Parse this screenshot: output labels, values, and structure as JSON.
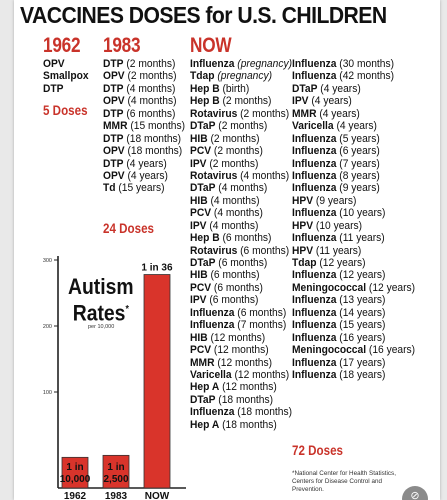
{
  "title": "VACCINES DOSES for U.S. CHILDREN",
  "columns": [
    {
      "year": "1962",
      "entries": [
        {
          "name": "OPV",
          "age": ""
        },
        {
          "name": "Smallpox",
          "age": ""
        },
        {
          "name": "DTP",
          "age": ""
        }
      ],
      "total": "5 Doses"
    },
    {
      "year": "1983",
      "entries": [
        {
          "name": "DTP",
          "age": "(2 months)"
        },
        {
          "name": "OPV",
          "age": "(2 months)"
        },
        {
          "name": "DTP",
          "age": "(4 months)"
        },
        {
          "name": "OPV",
          "age": "(4 months)"
        },
        {
          "name": "DTP",
          "age": "(6 months)"
        },
        {
          "name": "MMR",
          "age": "(15 months)"
        },
        {
          "name": "DTP",
          "age": "(18 months)"
        },
        {
          "name": "OPV",
          "age": "(18 months)"
        },
        {
          "name": "DTP",
          "age": "(4 years)"
        },
        {
          "name": "OPV",
          "age": "(4 years)"
        },
        {
          "name": "Td",
          "age": "(15 years)"
        }
      ],
      "total": "24 Doses"
    },
    {
      "year": "NOW",
      "entries": [
        {
          "name": "Influenza",
          "age": "(pregnancy)",
          "italic": true
        },
        {
          "name": "Tdap",
          "age": "(pregnancy)",
          "italic": true
        },
        {
          "name": "Hep B",
          "age": "(birth)"
        },
        {
          "name": "Hep B",
          "age": "(2 months)"
        },
        {
          "name": "Rotavirus",
          "age": "(2 months)"
        },
        {
          "name": "DTaP",
          "age": "(2 months)"
        },
        {
          "name": "HIB",
          "age": "(2 months)"
        },
        {
          "name": "PCV",
          "age": "(2 months)"
        },
        {
          "name": "IPV",
          "age": "(2 months)"
        },
        {
          "name": "Rotavirus",
          "age": "(4 months)"
        },
        {
          "name": "DTaP",
          "age": "(4 months)"
        },
        {
          "name": "HIB",
          "age": "(4 months)"
        },
        {
          "name": "PCV",
          "age": "(4 months)"
        },
        {
          "name": "IPV",
          "age": "(4 months)"
        },
        {
          "name": "Hep B",
          "age": "(6 months)"
        },
        {
          "name": "Rotavirus",
          "age": "(6 months)"
        },
        {
          "name": "DTaP",
          "age": "(6 months)"
        },
        {
          "name": "HIB",
          "age": "(6 months)"
        },
        {
          "name": "PCV",
          "age": "(6 months)"
        },
        {
          "name": "IPV",
          "age": "(6 months)"
        },
        {
          "name": "Influenza",
          "age": "(6 months)"
        },
        {
          "name": "Influenza",
          "age": "(7 months)"
        },
        {
          "name": "HIB",
          "age": "(12 months)"
        },
        {
          "name": "PCV",
          "age": "(12 months)"
        },
        {
          "name": "MMR",
          "age": "(12 months)"
        },
        {
          "name": "Varicella",
          "age": "(12 months)"
        },
        {
          "name": "Hep A",
          "age": "(12 months)"
        },
        {
          "name": "DTaP",
          "age": "(18 months)"
        },
        {
          "name": "Influenza",
          "age": "(18 months)"
        },
        {
          "name": "Hep A",
          "age": "(18 months)"
        }
      ],
      "total": ""
    },
    {
      "year": "",
      "entries": [
        {
          "name": "Influenza",
          "age": "(30 months)"
        },
        {
          "name": "Influenza",
          "age": "(42 months)"
        },
        {
          "name": "DTaP",
          "age": "(4 years)"
        },
        {
          "name": "IPV",
          "age": "(4 years)"
        },
        {
          "name": "MMR",
          "age": "(4 years)"
        },
        {
          "name": "Varicella",
          "age": "(4 years)"
        },
        {
          "name": "Influenza",
          "age": "(5 years)"
        },
        {
          "name": "Influenza",
          "age": "(6 years)"
        },
        {
          "name": "Influenza",
          "age": "(7 years)"
        },
        {
          "name": "Influenza",
          "age": "(8 years)"
        },
        {
          "name": "Influenza",
          "age": "(9 years)"
        },
        {
          "name": "HPV",
          "age": "(9 years)"
        },
        {
          "name": "Influenza",
          "age": "(10 years)"
        },
        {
          "name": "HPV",
          "age": "(10 years)"
        },
        {
          "name": "Influenza",
          "age": "(11 years)"
        },
        {
          "name": "HPV",
          "age": "(11 years)"
        },
        {
          "name": "Tdap",
          "age": "(12 years)"
        },
        {
          "name": "Influenza",
          "age": "(12 years)"
        },
        {
          "name": "Meningococcal",
          "age": "(12 years)"
        },
        {
          "name": "Influenza",
          "age": "(13 years)"
        },
        {
          "name": "Influenza",
          "age": "(14 years)"
        },
        {
          "name": "Influenza",
          "age": "(15 years)"
        },
        {
          "name": "Influenza",
          "age": "(16 years)"
        },
        {
          "name": "Meningococcal",
          "age": "(16 years)"
        },
        {
          "name": "Influenza",
          "age": "(17 years)"
        },
        {
          "name": "Influenza",
          "age": "(18 years)"
        }
      ],
      "total": "72 Doses"
    }
  ],
  "autism": {
    "title_line1": "Autism",
    "title_line2": "Rates",
    "asterisk": "*",
    "per": "per 10,000"
  },
  "footnote": "*National Center for Health Statistics, Centers for Disease Control and Prevention.",
  "colors": {
    "accent": "#c9332a",
    "bar": "#d9342b",
    "text": "#111111"
  },
  "chart_data": {
    "type": "bar",
    "title": "Autism Rates",
    "subtitle": "per 10,000",
    "categories": [
      "1962",
      "1983",
      "NOW"
    ],
    "values": [
      1,
      4,
      278
    ],
    "bar_labels": [
      "1 in 10,000",
      "1 in 2,500",
      "1 in 36"
    ],
    "ylim": [
      0,
      300
    ],
    "yticks": [
      100,
      200,
      300
    ],
    "grid": false,
    "legend": "none"
  }
}
